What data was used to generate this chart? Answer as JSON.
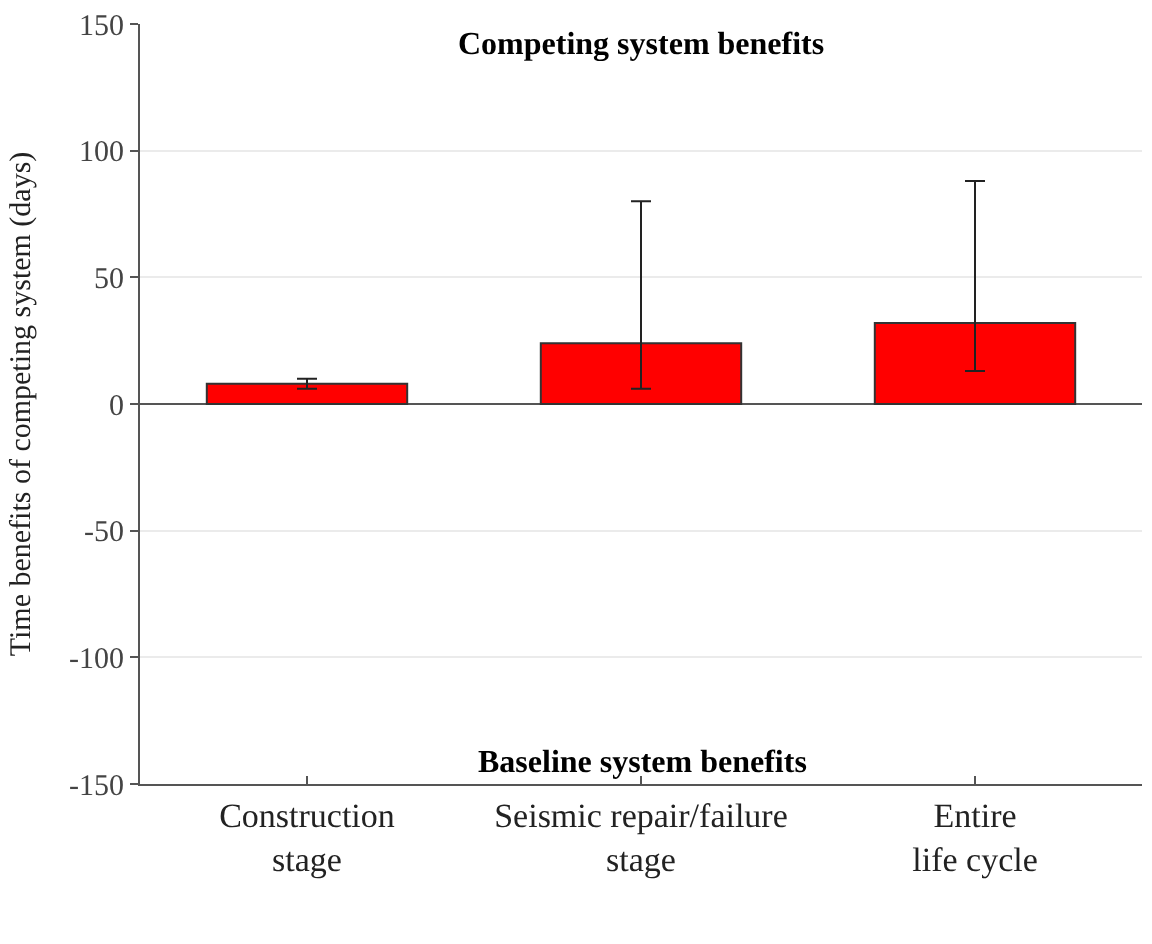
{
  "chart_data": {
    "type": "bar",
    "ylabel": "Time benefits of competing system (days)",
    "categories": [
      "Construction\nstage",
      "Seismic repair/failure\nstage",
      "Entire\nlife cycle"
    ],
    "values": [
      8,
      24,
      32
    ],
    "errors": [
      [
        6,
        10
      ],
      [
        6,
        80
      ],
      [
        13,
        88
      ]
    ],
    "color": "#ff0000",
    "ylim": [
      -150,
      150
    ],
    "yticks": [
      -150,
      -100,
      -50,
      0,
      50,
      100,
      150
    ],
    "grid": "y",
    "annotations": [
      "Competing system benefits",
      "Baseline system benefits"
    ]
  }
}
